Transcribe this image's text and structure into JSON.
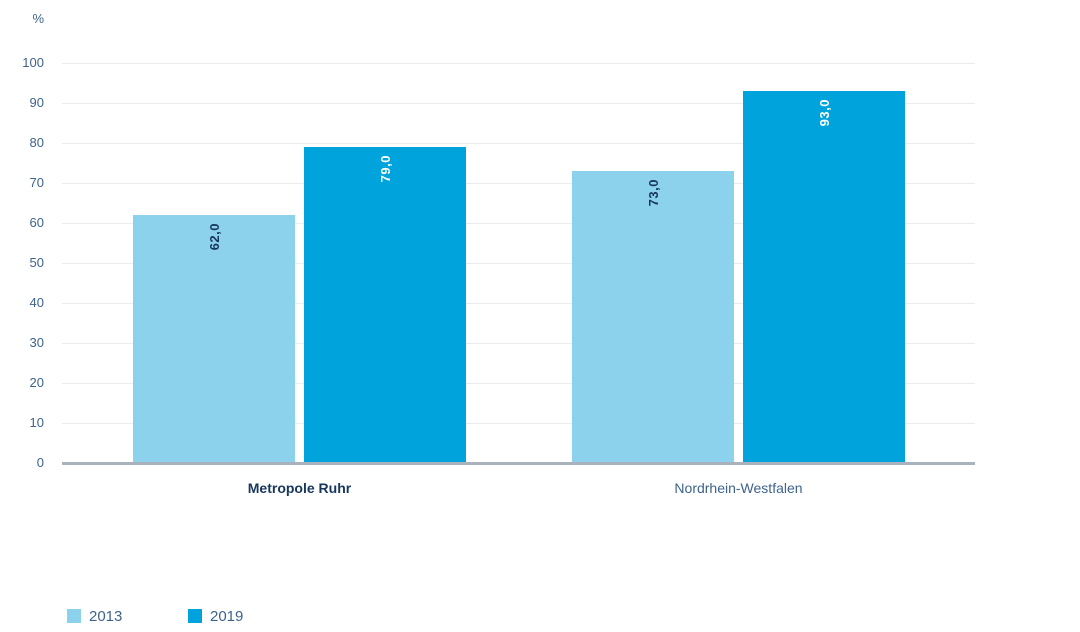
{
  "chart_data": {
    "type": "bar",
    "title": "",
    "xlabel": "",
    "ylabel": "%",
    "ylim": [
      0,
      100
    ],
    "ytick_step": 10,
    "grid": true,
    "legend_position": "bottom-left",
    "categories": [
      {
        "label": "Metropole Ruhr",
        "emphasis": true
      },
      {
        "label": "Nordrhein-Westfalen",
        "emphasis": false
      }
    ],
    "series": [
      {
        "name": "2013",
        "color": "#8CD2EC",
        "value_label_color": "#17365D",
        "values": [
          62.0,
          73.0
        ],
        "value_labels": [
          "62,0",
          "73,0"
        ]
      },
      {
        "name": "2019",
        "color": "#00A3DC",
        "value_label_color": "#FFFFFF",
        "values": [
          79.0,
          93.0
        ],
        "value_labels": [
          "79,0",
          "93,0"
        ]
      }
    ],
    "colors": {
      "grid": "#ECECEC",
      "axis_line": "#A9B2BD",
      "tick_text": "#3E638C",
      "category_emphasis_text": "#17365D",
      "category_regular_text": "#3E638C",
      "legend_text": "#3E638C"
    }
  }
}
